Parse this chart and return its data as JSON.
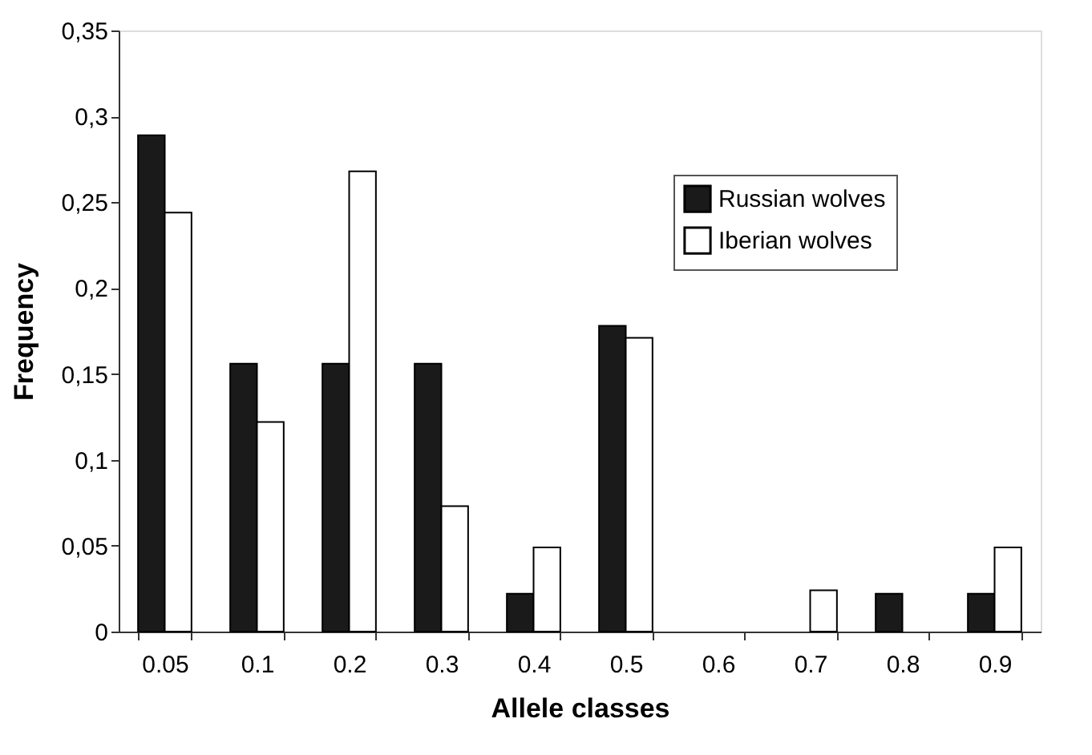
{
  "chart_data": {
    "type": "bar",
    "xlabel": "Allele classes",
    "ylabel": "Frequency",
    "categories": [
      "0.05",
      "0.1",
      "0.2",
      "0.3",
      "0.4",
      "0.5",
      "0.6",
      "0.7",
      "0.8",
      "0.9"
    ],
    "series": [
      {
        "name": "Russian wolves",
        "color": "#1a1a1a",
        "values": [
          0.289,
          0.156,
          0.156,
          0.156,
          0.022,
          0.178,
          null,
          null,
          0.022,
          0.022
        ]
      },
      {
        "name": "Iberian wolves",
        "color": "#ffffff",
        "values": [
          0.244,
          0.122,
          0.268,
          0.073,
          0.049,
          0.171,
          null,
          0.024,
          null,
          0.049
        ]
      }
    ],
    "ylim": [
      0,
      0.35
    ],
    "yticks": [
      0,
      {
        "value": 0.05,
        "label": "0,05"
      },
      {
        "value": 0.1,
        "label": "0,1"
      },
      {
        "value": 0.15,
        "label": "0,15"
      },
      {
        "value": 0.2,
        "label": "0,2"
      },
      {
        "value": 0.25,
        "label": "0,25"
      },
      {
        "value": 0.3,
        "label": "0,3"
      },
      {
        "value": 0.35,
        "label": "0,35"
      }
    ],
    "grid": false,
    "legend": "top right"
  }
}
